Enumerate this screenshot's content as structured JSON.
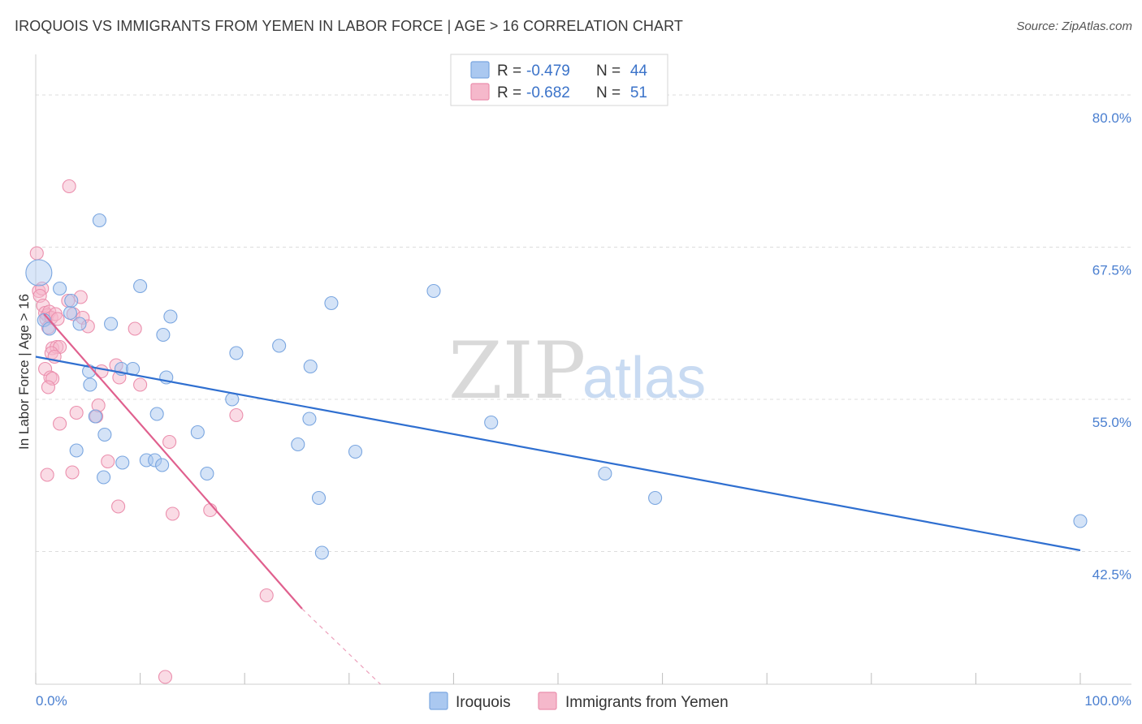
{
  "header": {
    "title": "IROQUOIS VS IMMIGRANTS FROM YEMEN IN LABOR FORCE | AGE > 16 CORRELATION CHART",
    "source": "Source: ZipAtlas.com"
  },
  "watermark": {
    "zip": "ZIP",
    "atlas": "atlas"
  },
  "colors": {
    "blue_fill": "#aac8f0",
    "blue_stroke": "#7aa6e0",
    "blue_line": "#2f6fd0",
    "pink_fill": "#f5b8cb",
    "pink_stroke": "#eb8fad",
    "pink_line": "#e0608e",
    "grid": "#dddddd",
    "tick_text": "#4a7fd0"
  },
  "legend": {
    "rows": [
      {
        "series": "Iroquois",
        "r_label": "R =",
        "r_value": "-0.479",
        "n_label": "N =",
        "n_value": "44"
      },
      {
        "series": "Immigrants from Yemen",
        "r_label": "R =",
        "r_value": "-0.682",
        "n_label": "N =",
        "n_value": "51"
      }
    ]
  },
  "chart_data": {
    "type": "scatter",
    "title": "IROQUOIS VS IMMIGRANTS FROM YEMEN IN LABOR FORCE | AGE > 16 CORRELATION CHART",
    "xlabel": "",
    "ylabel": "In Labor Force | Age > 16",
    "xlim": [
      0,
      100
    ],
    "ylim": [
      31.6,
      82.6
    ],
    "x_tick_labels": [
      "0.0%",
      "100.0%"
    ],
    "y_ticks": [
      42.5,
      55.0,
      67.5,
      80.0
    ],
    "y_tick_labels": [
      "42.5%",
      "55.0%",
      "67.5%",
      "80.0%"
    ],
    "grid": true,
    "legend_position": "top-center",
    "series": [
      {
        "name": "Iroquois",
        "r": -0.479,
        "n": 44,
        "trend": {
          "x": [
            0,
            100
          ],
          "y": [
            58.5,
            42.6
          ]
        },
        "points": [
          [
            0.3,
            65.4
          ],
          [
            0.8,
            61.5
          ],
          [
            1.3,
            60.8
          ],
          [
            2.3,
            64.1
          ],
          [
            3.3,
            62.1
          ],
          [
            3.4,
            63.1
          ],
          [
            6.1,
            69.7
          ],
          [
            4.2,
            61.2
          ],
          [
            7.2,
            61.2
          ],
          [
            5.1,
            57.3
          ],
          [
            5.2,
            56.2
          ],
          [
            5.7,
            53.6
          ],
          [
            3.9,
            50.8
          ],
          [
            6.6,
            52.1
          ],
          [
            6.5,
            48.6
          ],
          [
            8.2,
            57.5
          ],
          [
            9.3,
            57.5
          ],
          [
            8.3,
            49.8
          ],
          [
            10.0,
            64.3
          ],
          [
            10.6,
            50.0
          ],
          [
            11.4,
            50.0
          ],
          [
            11.6,
            53.8
          ],
          [
            12.1,
            49.6
          ],
          [
            12.5,
            56.8
          ],
          [
            12.2,
            60.3
          ],
          [
            12.9,
            61.8
          ],
          [
            15.5,
            52.3
          ],
          [
            16.4,
            48.9
          ],
          [
            18.8,
            55.0
          ],
          [
            19.2,
            58.8
          ],
          [
            23.3,
            59.4
          ],
          [
            25.1,
            51.3
          ],
          [
            26.2,
            53.4
          ],
          [
            26.3,
            57.7
          ],
          [
            27.1,
            46.9
          ],
          [
            27.4,
            42.4
          ],
          [
            28.3,
            62.9
          ],
          [
            30.6,
            50.7
          ],
          [
            38.1,
            63.9
          ],
          [
            43.6,
            53.1
          ],
          [
            54.5,
            48.9
          ],
          [
            59.3,
            46.9
          ],
          [
            100.0,
            45.0
          ]
        ]
      },
      {
        "name": "Immigrants from Yemen",
        "r": -0.682,
        "n": 51,
        "trend": {
          "x": [
            0.8,
            25.5
          ],
          "y": [
            62.0,
            37.8
          ]
        },
        "trend_dashed": {
          "x": [
            25.5,
            33.0
          ],
          "y": [
            37.8,
            31.6
          ]
        },
        "points": [
          [
            0.1,
            67.0
          ],
          [
            0.3,
            63.9
          ],
          [
            0.6,
            64.1
          ],
          [
            0.4,
            63.5
          ],
          [
            0.7,
            62.7
          ],
          [
            0.9,
            62.1
          ],
          [
            1.1,
            61.9
          ],
          [
            1.0,
            61.6
          ],
          [
            1.3,
            62.2
          ],
          [
            1.5,
            61.7
          ],
          [
            1.9,
            62.0
          ],
          [
            2.1,
            61.6
          ],
          [
            1.2,
            60.9
          ],
          [
            1.6,
            59.2
          ],
          [
            2.0,
            59.3
          ],
          [
            2.3,
            59.3
          ],
          [
            1.5,
            58.8
          ],
          [
            1.8,
            58.5
          ],
          [
            0.9,
            57.5
          ],
          [
            1.4,
            56.8
          ],
          [
            1.6,
            56.7
          ],
          [
            1.2,
            56.0
          ],
          [
            1.1,
            48.8
          ],
          [
            2.3,
            53.0
          ],
          [
            3.1,
            63.1
          ],
          [
            3.6,
            62.0
          ],
          [
            4.3,
            63.4
          ],
          [
            4.5,
            61.7
          ],
          [
            5.0,
            61.0
          ],
          [
            3.5,
            49.0
          ],
          [
            3.9,
            53.9
          ],
          [
            5.8,
            53.6
          ],
          [
            6.0,
            54.5
          ],
          [
            6.3,
            57.3
          ],
          [
            6.9,
            49.9
          ],
          [
            7.9,
            46.2
          ],
          [
            7.7,
            57.8
          ],
          [
            8.0,
            56.8
          ],
          [
            9.5,
            60.8
          ],
          [
            10.0,
            56.2
          ],
          [
            3.2,
            72.5
          ],
          [
            12.8,
            51.5
          ],
          [
            13.1,
            45.6
          ],
          [
            16.7,
            45.9
          ],
          [
            19.2,
            53.7
          ],
          [
            22.1,
            38.9
          ],
          [
            12.4,
            32.2
          ]
        ]
      }
    ]
  },
  "bottom_legend": {
    "items": [
      {
        "label": "Iroquois"
      },
      {
        "label": "Immigrants from Yemen"
      }
    ]
  }
}
